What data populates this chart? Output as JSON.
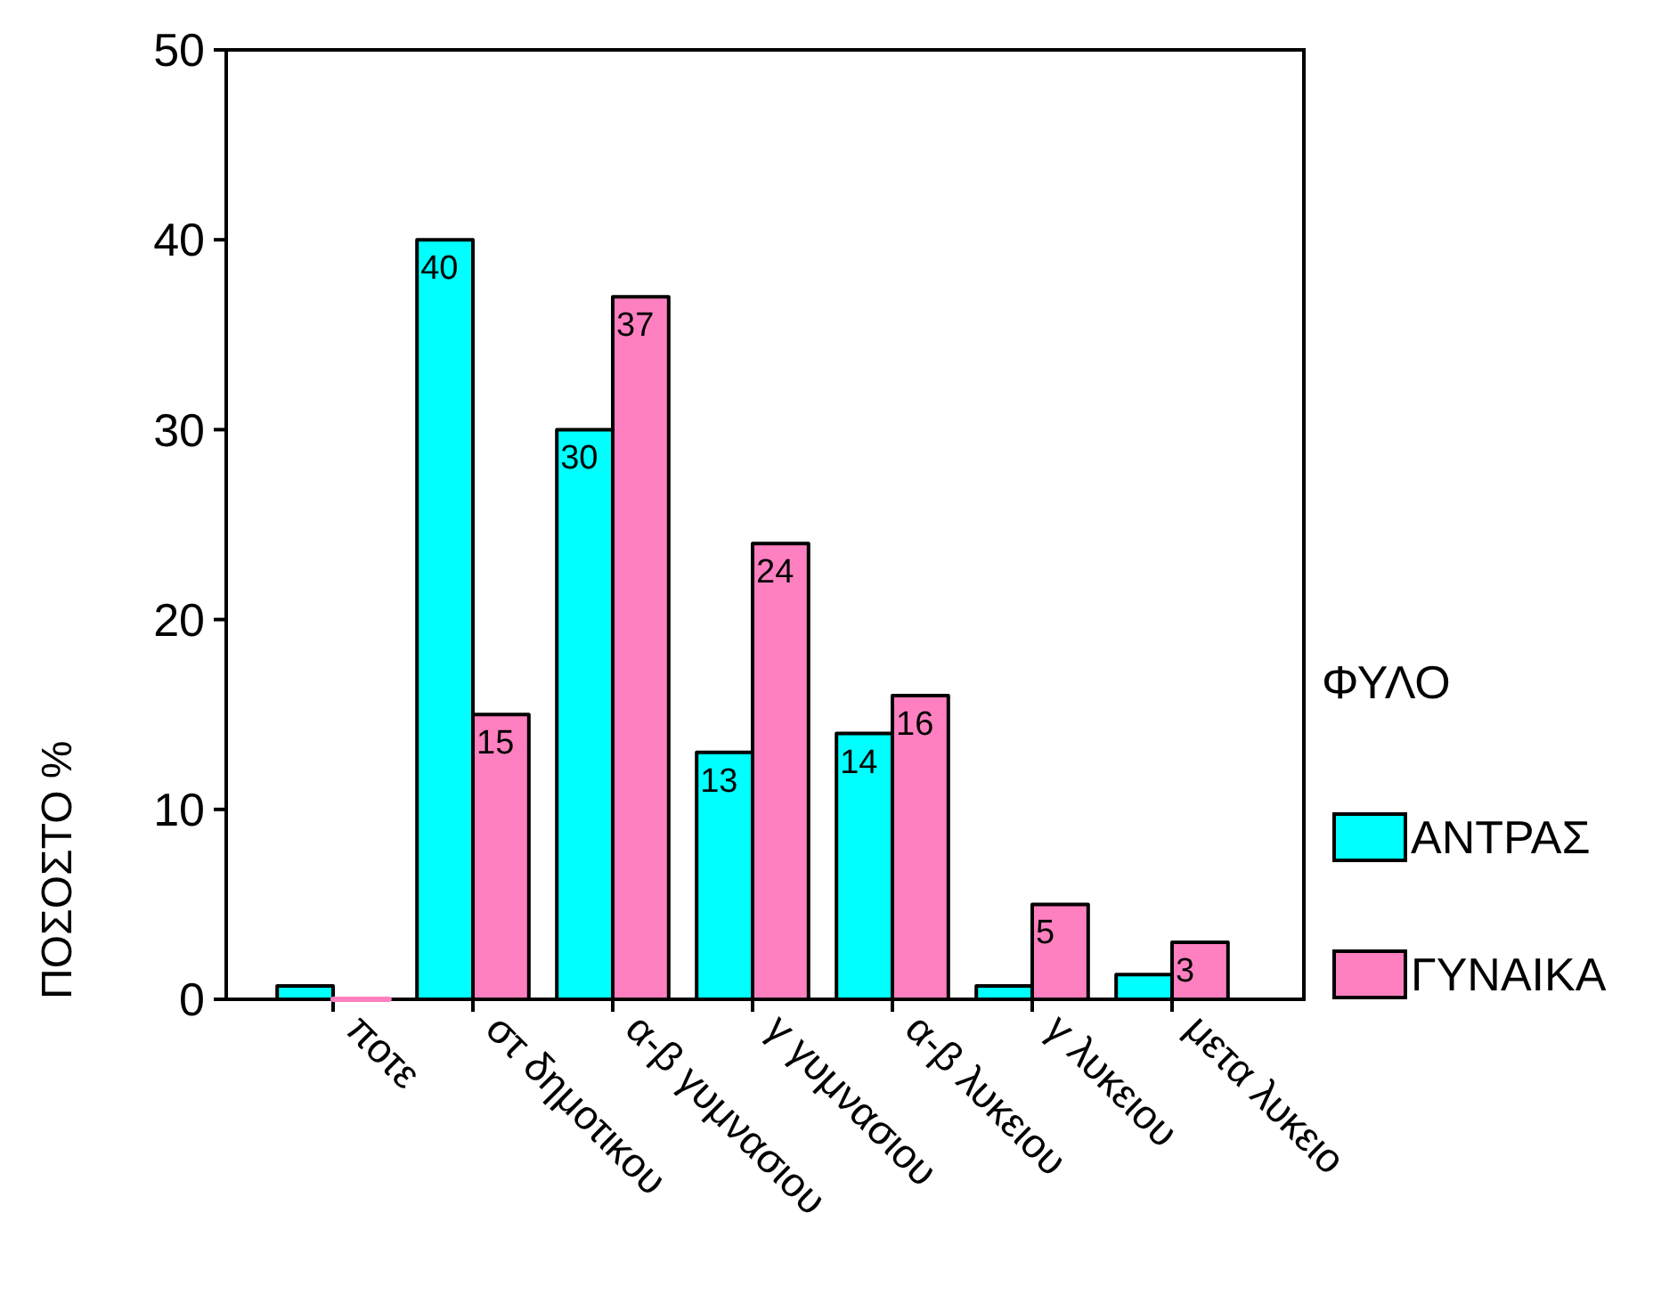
{
  "chart_data": {
    "type": "bar",
    "ylabel": "ΠΟΣΟΣΤΟ %",
    "legend_title": "ΦΥΛΟ",
    "categories": [
      "ποτε",
      "στ δημοτικου",
      "α-β γυμνασιου",
      "γ γυμνασιου",
      "α-β λυκειου",
      "γ λυκειου",
      "μετα λυκειο"
    ],
    "series": [
      {
        "name": "ΑΝΤΡΑΣ",
        "color": "#00ffff",
        "values": [
          0.7,
          40,
          30,
          13,
          14,
          0.7,
          1.3
        ],
        "value_labels": [
          null,
          "40",
          "30",
          "13",
          "14",
          null,
          null
        ]
      },
      {
        "name": "ΓΥΝΑΙΚΑ",
        "color": "#ff80c0",
        "values": [
          0,
          15,
          37,
          24,
          16,
          5,
          3
        ],
        "value_labels": [
          null,
          "15",
          "37",
          "24",
          "16",
          "5",
          "3"
        ]
      }
    ],
    "ylim": [
      0,
      50
    ],
    "yticks": [
      0,
      10,
      20,
      30,
      40,
      50
    ],
    "legend": "right"
  }
}
